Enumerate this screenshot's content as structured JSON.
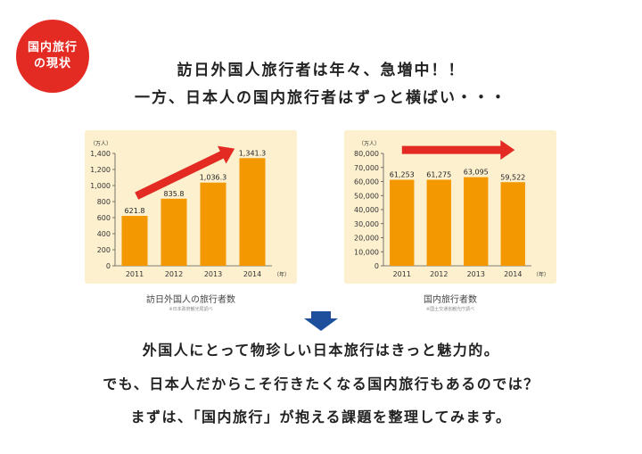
{
  "badge": {
    "line1": "国内旅行",
    "line2": "の現状"
  },
  "headline": {
    "line1": "訪日外国人旅行者は年々、急増中！！",
    "line2": "一方、日本人の国内旅行者はずっと横ばい・・・"
  },
  "colors": {
    "bar": "#f39800",
    "arrow": "#e32b23",
    "panel": "#fcf0cf",
    "down_arrow": "#1d4f9c",
    "badge": "#e32b23"
  },
  "chart_data": [
    {
      "type": "bar",
      "title": "訪日外国人の旅行者数",
      "source": "※日本政府観光局調べ",
      "unit": "（万人）",
      "xunit": "（年）",
      "categories": [
        "2011",
        "2012",
        "2013",
        "2014"
      ],
      "values": [
        621.8,
        835.8,
        1036.3,
        1341.3
      ],
      "value_labels": [
        "621.8",
        "835.8",
        "1,036.3",
        "1,341.3"
      ],
      "ylim": [
        0,
        1400
      ],
      "yticks": [
        "0",
        "200",
        "400",
        "600",
        "800",
        "1,000",
        "1,200",
        "1,400"
      ],
      "ytick_values": [
        0,
        200,
        400,
        600,
        800,
        1000,
        1200,
        1400
      ],
      "trend_arrow": "up"
    },
    {
      "type": "bar",
      "title": "国内旅行者数",
      "source": "※国土交通省観光庁調べ",
      "unit": "（万人）",
      "xunit": "（年）",
      "categories": [
        "2011",
        "2012",
        "2013",
        "2014"
      ],
      "values": [
        61253,
        61275,
        63095,
        59522
      ],
      "value_labels": [
        "61,253",
        "61,275",
        "63,095",
        "59,522"
      ],
      "ylim": [
        0,
        80000
      ],
      "yticks": [
        "0",
        "10,000",
        "20,000",
        "30,000",
        "40,000",
        "50,000",
        "60,000",
        "70,000",
        "80,000"
      ],
      "ytick_values": [
        0,
        10000,
        20000,
        30000,
        40000,
        50000,
        60000,
        70000,
        80000
      ],
      "trend_arrow": "flat"
    }
  ],
  "body": {
    "line1": "外国人にとって物珍しい日本旅行はきっと魅力的。",
    "line2": "でも、日本人だからこそ行きたくなる国内旅行もあるのでは？",
    "line3": "まずは、「国内旅行」が抱える課題を整理してみます。"
  }
}
